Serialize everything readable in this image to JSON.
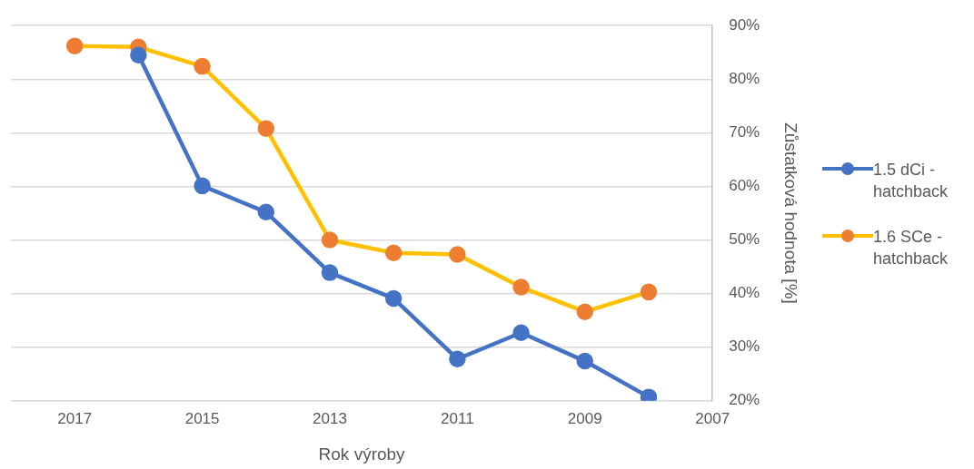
{
  "chart_data": {
    "type": "line",
    "xlabel": "Rok výroby",
    "ylabel": "Zůstatková hodnota [%]",
    "x": [
      2017,
      2016,
      2015,
      2014,
      2013,
      2012,
      2011,
      2010,
      2009,
      2008
    ],
    "xlim": [
      2018,
      2007
    ],
    "xticks": [
      2017,
      2015,
      2013,
      2011,
      2009,
      2007
    ],
    "ylim": [
      20,
      90
    ],
    "yticks": [
      {
        "value": 20,
        "label": "20%"
      },
      {
        "value": 30,
        "label": "30%"
      },
      {
        "value": 40,
        "label": "40%"
      },
      {
        "value": 50,
        "label": "50%"
      },
      {
        "value": 60,
        "label": "60%"
      },
      {
        "value": 70,
        "label": "70%"
      },
      {
        "value": 80,
        "label": "80%"
      },
      {
        "value": 90,
        "label": "90%"
      }
    ],
    "grid": "y",
    "legend": "right",
    "marker": "circle",
    "line_style": "solid",
    "series": [
      {
        "name": "1.5 dCi - hatchback",
        "color": "#4472c4",
        "values": [
          null,
          84.5,
          60.1,
          55.2,
          43.9,
          39.1,
          27.8,
          32.7,
          27.4,
          20.7
        ]
      },
      {
        "name": "1.6 SCe - hatchback",
        "color": "#ffc000",
        "colors": [
          "#ed7d31",
          "#ed7d31",
          "#ed7d31",
          "#ed7d31",
          "#ed7d31",
          "#ed7d31",
          "#ed7d31",
          "#ed7d31",
          "#ed7d31",
          "#ed7d31"
        ],
        "values": [
          86.2,
          86.0,
          82.4,
          70.8,
          50.0,
          47.6,
          47.3,
          41.2,
          36.6,
          40.3
        ]
      }
    ]
  }
}
